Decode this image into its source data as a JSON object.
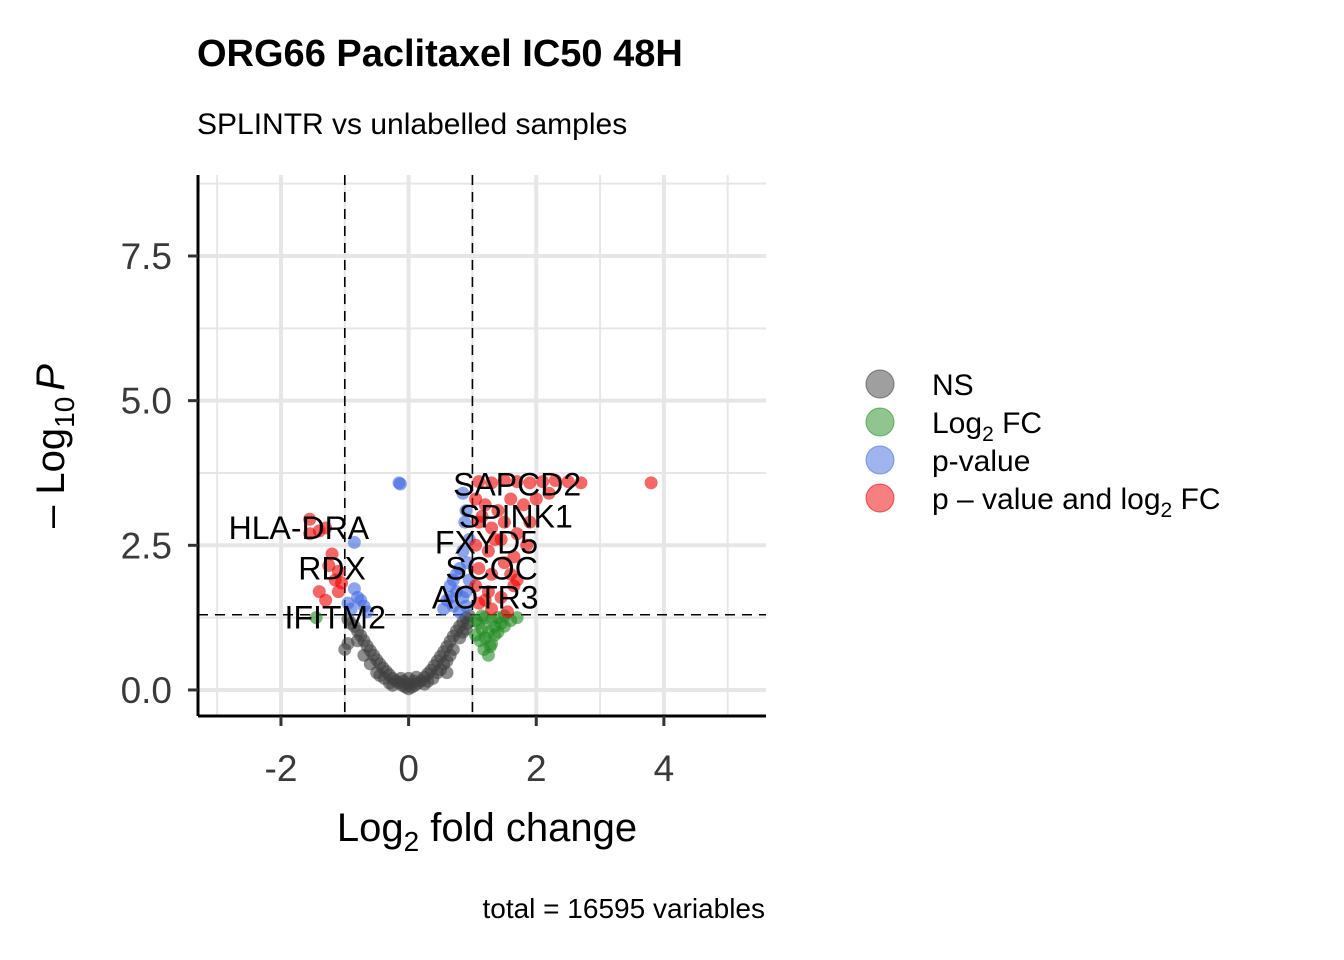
{
  "chart_data": {
    "type": "scatter",
    "title": "ORG66 Paclitaxel IC50 48H",
    "subtitle": "SPLINTR vs unlabelled samples",
    "xlabel_main": "Log",
    "xlabel_sub": "2",
    "xlabel_rest": " fold change",
    "ylabel_prefix": "– Log",
    "ylabel_sub": "10",
    "ylabel_var": "P",
    "caption": "total = 16595 variables",
    "xlim": [
      -3.3,
      5.6
    ],
    "ylim": [
      -0.45,
      8.9
    ],
    "x_ticks": [
      -2,
      0,
      2,
      4
    ],
    "x_tick_labels": [
      "-2",
      "0",
      "2",
      "4"
    ],
    "y_ticks": [
      0,
      2.5,
      5,
      7.5
    ],
    "y_tick_labels": [
      "0.0",
      "2.5",
      "5.0",
      "7.5"
    ],
    "grid": true,
    "fc_cutoff": 1,
    "p_cutoff_log10": 1.3,
    "legend_position": "right",
    "legend": [
      {
        "key": "ns",
        "label": "NS",
        "sub": "",
        "rest": "",
        "color": "#404040"
      },
      {
        "key": "fc",
        "label": "Log",
        "sub": "2",
        "rest": " FC",
        "color": "#228b22"
      },
      {
        "key": "p",
        "label": "p-value",
        "sub": "",
        "rest": "",
        "color": "#4169e1"
      },
      {
        "key": "both",
        "label": "p – value and log",
        "sub": "2",
        "rest": " FC",
        "color": "#ee0000"
      }
    ],
    "series": [
      {
        "name": "NS",
        "color": "#404040",
        "points": [
          [
            0.0,
            0.02
          ],
          [
            -0.05,
            0.05
          ],
          [
            0.05,
            0.05
          ],
          [
            -0.1,
            0.08
          ],
          [
            0.1,
            0.08
          ],
          [
            -0.15,
            0.12
          ],
          [
            0.15,
            0.12
          ],
          [
            -0.2,
            0.16
          ],
          [
            0.2,
            0.16
          ],
          [
            -0.25,
            0.2
          ],
          [
            0.25,
            0.22
          ],
          [
            -0.3,
            0.26
          ],
          [
            0.3,
            0.28
          ],
          [
            -0.35,
            0.32
          ],
          [
            0.35,
            0.34
          ],
          [
            -0.4,
            0.38
          ],
          [
            0.4,
            0.42
          ],
          [
            -0.45,
            0.45
          ],
          [
            0.45,
            0.5
          ],
          [
            -0.5,
            0.52
          ],
          [
            0.5,
            0.58
          ],
          [
            -0.55,
            0.6
          ],
          [
            0.55,
            0.66
          ],
          [
            -0.6,
            0.68
          ],
          [
            0.6,
            0.75
          ],
          [
            -0.65,
            0.76
          ],
          [
            0.65,
            0.84
          ],
          [
            -0.7,
            0.85
          ],
          [
            0.7,
            0.93
          ],
          [
            -0.75,
            0.94
          ],
          [
            0.75,
            1.02
          ],
          [
            -0.8,
            1.02
          ],
          [
            0.8,
            1.1
          ],
          [
            -0.85,
            1.1
          ],
          [
            0.85,
            1.18
          ],
          [
            0.9,
            1.25
          ],
          [
            -0.9,
            1.15
          ],
          [
            0.95,
            1.28
          ],
          [
            -0.95,
            1.22
          ],
          [
            0.0,
            0.1
          ],
          [
            0.0,
            0.2
          ],
          [
            0.08,
            0.15
          ],
          [
            -0.08,
            0.15
          ],
          [
            0.12,
            0.22
          ],
          [
            -0.12,
            0.2
          ],
          [
            0.3,
            0.15
          ],
          [
            -0.3,
            0.12
          ],
          [
            0.45,
            0.3
          ],
          [
            -0.45,
            0.25
          ],
          [
            0.6,
            0.5
          ],
          [
            -0.6,
            0.45
          ],
          [
            0.7,
            0.7
          ],
          [
            -0.7,
            0.6
          ],
          [
            0.8,
            0.9
          ],
          [
            -0.8,
            0.85
          ],
          [
            0.9,
            1.05
          ],
          [
            0.55,
            0.45
          ],
          [
            0.25,
            0.1
          ],
          [
            -0.25,
            0.08
          ],
          [
            0.38,
            0.2
          ],
          [
            -0.38,
            0.2
          ],
          [
            0.5,
            0.35
          ],
          [
            -0.5,
            0.3
          ],
          [
            -1.0,
            0.7
          ],
          [
            -0.95,
            0.8
          ],
          [
            0.6,
            0.3
          ],
          [
            0.65,
            0.6
          ],
          [
            0.85,
            1.0
          ],
          [
            0.92,
            1.15
          ]
        ]
      },
      {
        "name": "Log2 FC",
        "color": "#228b22",
        "points": [
          [
            1.05,
            1.2
          ],
          [
            1.1,
            1.15
          ],
          [
            1.15,
            1.05
          ],
          [
            1.2,
            1.25
          ],
          [
            1.25,
            1.0
          ],
          [
            1.3,
            1.2
          ],
          [
            1.35,
            1.1
          ],
          [
            1.4,
            1.25
          ],
          [
            1.45,
            1.15
          ],
          [
            1.5,
            1.28
          ],
          [
            1.6,
            1.2
          ],
          [
            1.05,
            0.95
          ],
          [
            1.12,
            0.85
          ],
          [
            1.2,
            0.9
          ],
          [
            1.3,
            0.8
          ],
          [
            1.18,
            0.7
          ],
          [
            1.25,
            0.6
          ],
          [
            1.15,
            1.28
          ],
          [
            1.4,
            1.0
          ],
          [
            1.5,
            1.1
          ],
          [
            1.7,
            1.25
          ],
          [
            1.35,
            0.95
          ],
          [
            1.28,
            0.75
          ],
          [
            -1.45,
            1.25
          ]
        ]
      },
      {
        "name": "p-value",
        "color": "#4169e1",
        "points": [
          [
            -0.15,
            3.58
          ],
          [
            -0.13,
            3.56
          ],
          [
            0.85,
            3.4
          ],
          [
            0.9,
            3.1
          ],
          [
            0.88,
            2.9
          ],
          [
            0.95,
            2.6
          ],
          [
            0.85,
            2.4
          ],
          [
            0.92,
            2.2
          ],
          [
            0.8,
            2.1
          ],
          [
            0.7,
            1.9
          ],
          [
            0.65,
            1.8
          ],
          [
            0.75,
            1.7
          ],
          [
            0.85,
            1.6
          ],
          [
            0.6,
            1.55
          ],
          [
            0.7,
            1.45
          ],
          [
            0.9,
            1.45
          ],
          [
            0.55,
            1.4
          ],
          [
            0.8,
            1.35
          ],
          [
            0.95,
            1.9
          ],
          [
            0.9,
            1.7
          ],
          [
            -0.85,
            2.55
          ],
          [
            -0.85,
            1.75
          ],
          [
            -0.8,
            1.6
          ],
          [
            -0.75,
            1.55
          ],
          [
            -0.7,
            1.45
          ],
          [
            -0.9,
            1.4
          ],
          [
            -0.65,
            1.35
          ],
          [
            -0.95,
            1.5
          ],
          [
            0.65,
            1.6
          ],
          [
            0.75,
            2.0
          ]
        ]
      },
      {
        "name": "p-value and log2 FC",
        "color": "#ee0000",
        "points": [
          [
            1.1,
            3.6
          ],
          [
            1.3,
            3.58
          ],
          [
            1.5,
            3.62
          ],
          [
            1.7,
            3.6
          ],
          [
            1.9,
            3.58
          ],
          [
            2.1,
            3.6
          ],
          [
            2.3,
            3.62
          ],
          [
            2.5,
            3.6
          ],
          [
            2.7,
            3.58
          ],
          [
            3.8,
            3.58
          ],
          [
            1.05,
            3.3
          ],
          [
            1.2,
            3.2
          ],
          [
            1.4,
            3.1
          ],
          [
            1.6,
            3.3
          ],
          [
            1.8,
            3.2
          ],
          [
            2.0,
            3.3
          ],
          [
            2.2,
            3.4
          ],
          [
            1.1,
            2.9
          ],
          [
            1.3,
            2.8
          ],
          [
            1.5,
            2.9
          ],
          [
            1.7,
            2.7
          ],
          [
            1.9,
            2.9
          ],
          [
            1.05,
            2.5
          ],
          [
            1.25,
            2.4
          ],
          [
            1.45,
            2.6
          ],
          [
            1.65,
            2.3
          ],
          [
            1.85,
            2.5
          ],
          [
            1.1,
            2.1
          ],
          [
            1.3,
            2.0
          ],
          [
            1.5,
            2.2
          ],
          [
            1.7,
            1.9
          ],
          [
            1.05,
            1.8
          ],
          [
            1.25,
            1.7
          ],
          [
            1.45,
            1.6
          ],
          [
            1.65,
            1.8
          ],
          [
            1.1,
            1.5
          ],
          [
            1.3,
            1.4
          ],
          [
            1.55,
            1.35
          ],
          [
            1.15,
            3.0
          ],
          [
            1.35,
            2.6
          ],
          [
            1.6,
            2.0
          ],
          [
            1.2,
            1.55
          ],
          [
            -1.55,
            2.95
          ],
          [
            -1.4,
            2.75
          ],
          [
            -1.3,
            2.8
          ],
          [
            -1.55,
            2.7
          ],
          [
            -1.2,
            2.35
          ],
          [
            -1.25,
            2.15
          ],
          [
            -1.1,
            2.05
          ],
          [
            -1.15,
            1.9
          ],
          [
            -1.05,
            1.85
          ],
          [
            -1.1,
            1.7
          ],
          [
            -1.3,
            1.55
          ],
          [
            -1.4,
            1.7
          ]
        ]
      }
    ],
    "gene_labels": [
      {
        "text": "SAPCD2",
        "x": 1.7,
        "y": 3.55
      },
      {
        "text": "SPINK1",
        "x": 1.68,
        "y": 3.0
      },
      {
        "text": "FXYD5",
        "x": 1.22,
        "y": 2.55
      },
      {
        "text": "SCOC",
        "x": 1.3,
        "y": 2.1
      },
      {
        "text": "AOTR3",
        "x": 1.2,
        "y": 1.6
      },
      {
        "text": "HLA-DRA",
        "x": -1.72,
        "y": 2.8
      },
      {
        "text": "RDX",
        "x": -1.2,
        "y": 2.1
      },
      {
        "text": "IFITM2",
        "x": -1.15,
        "y": 1.25
      }
    ]
  }
}
